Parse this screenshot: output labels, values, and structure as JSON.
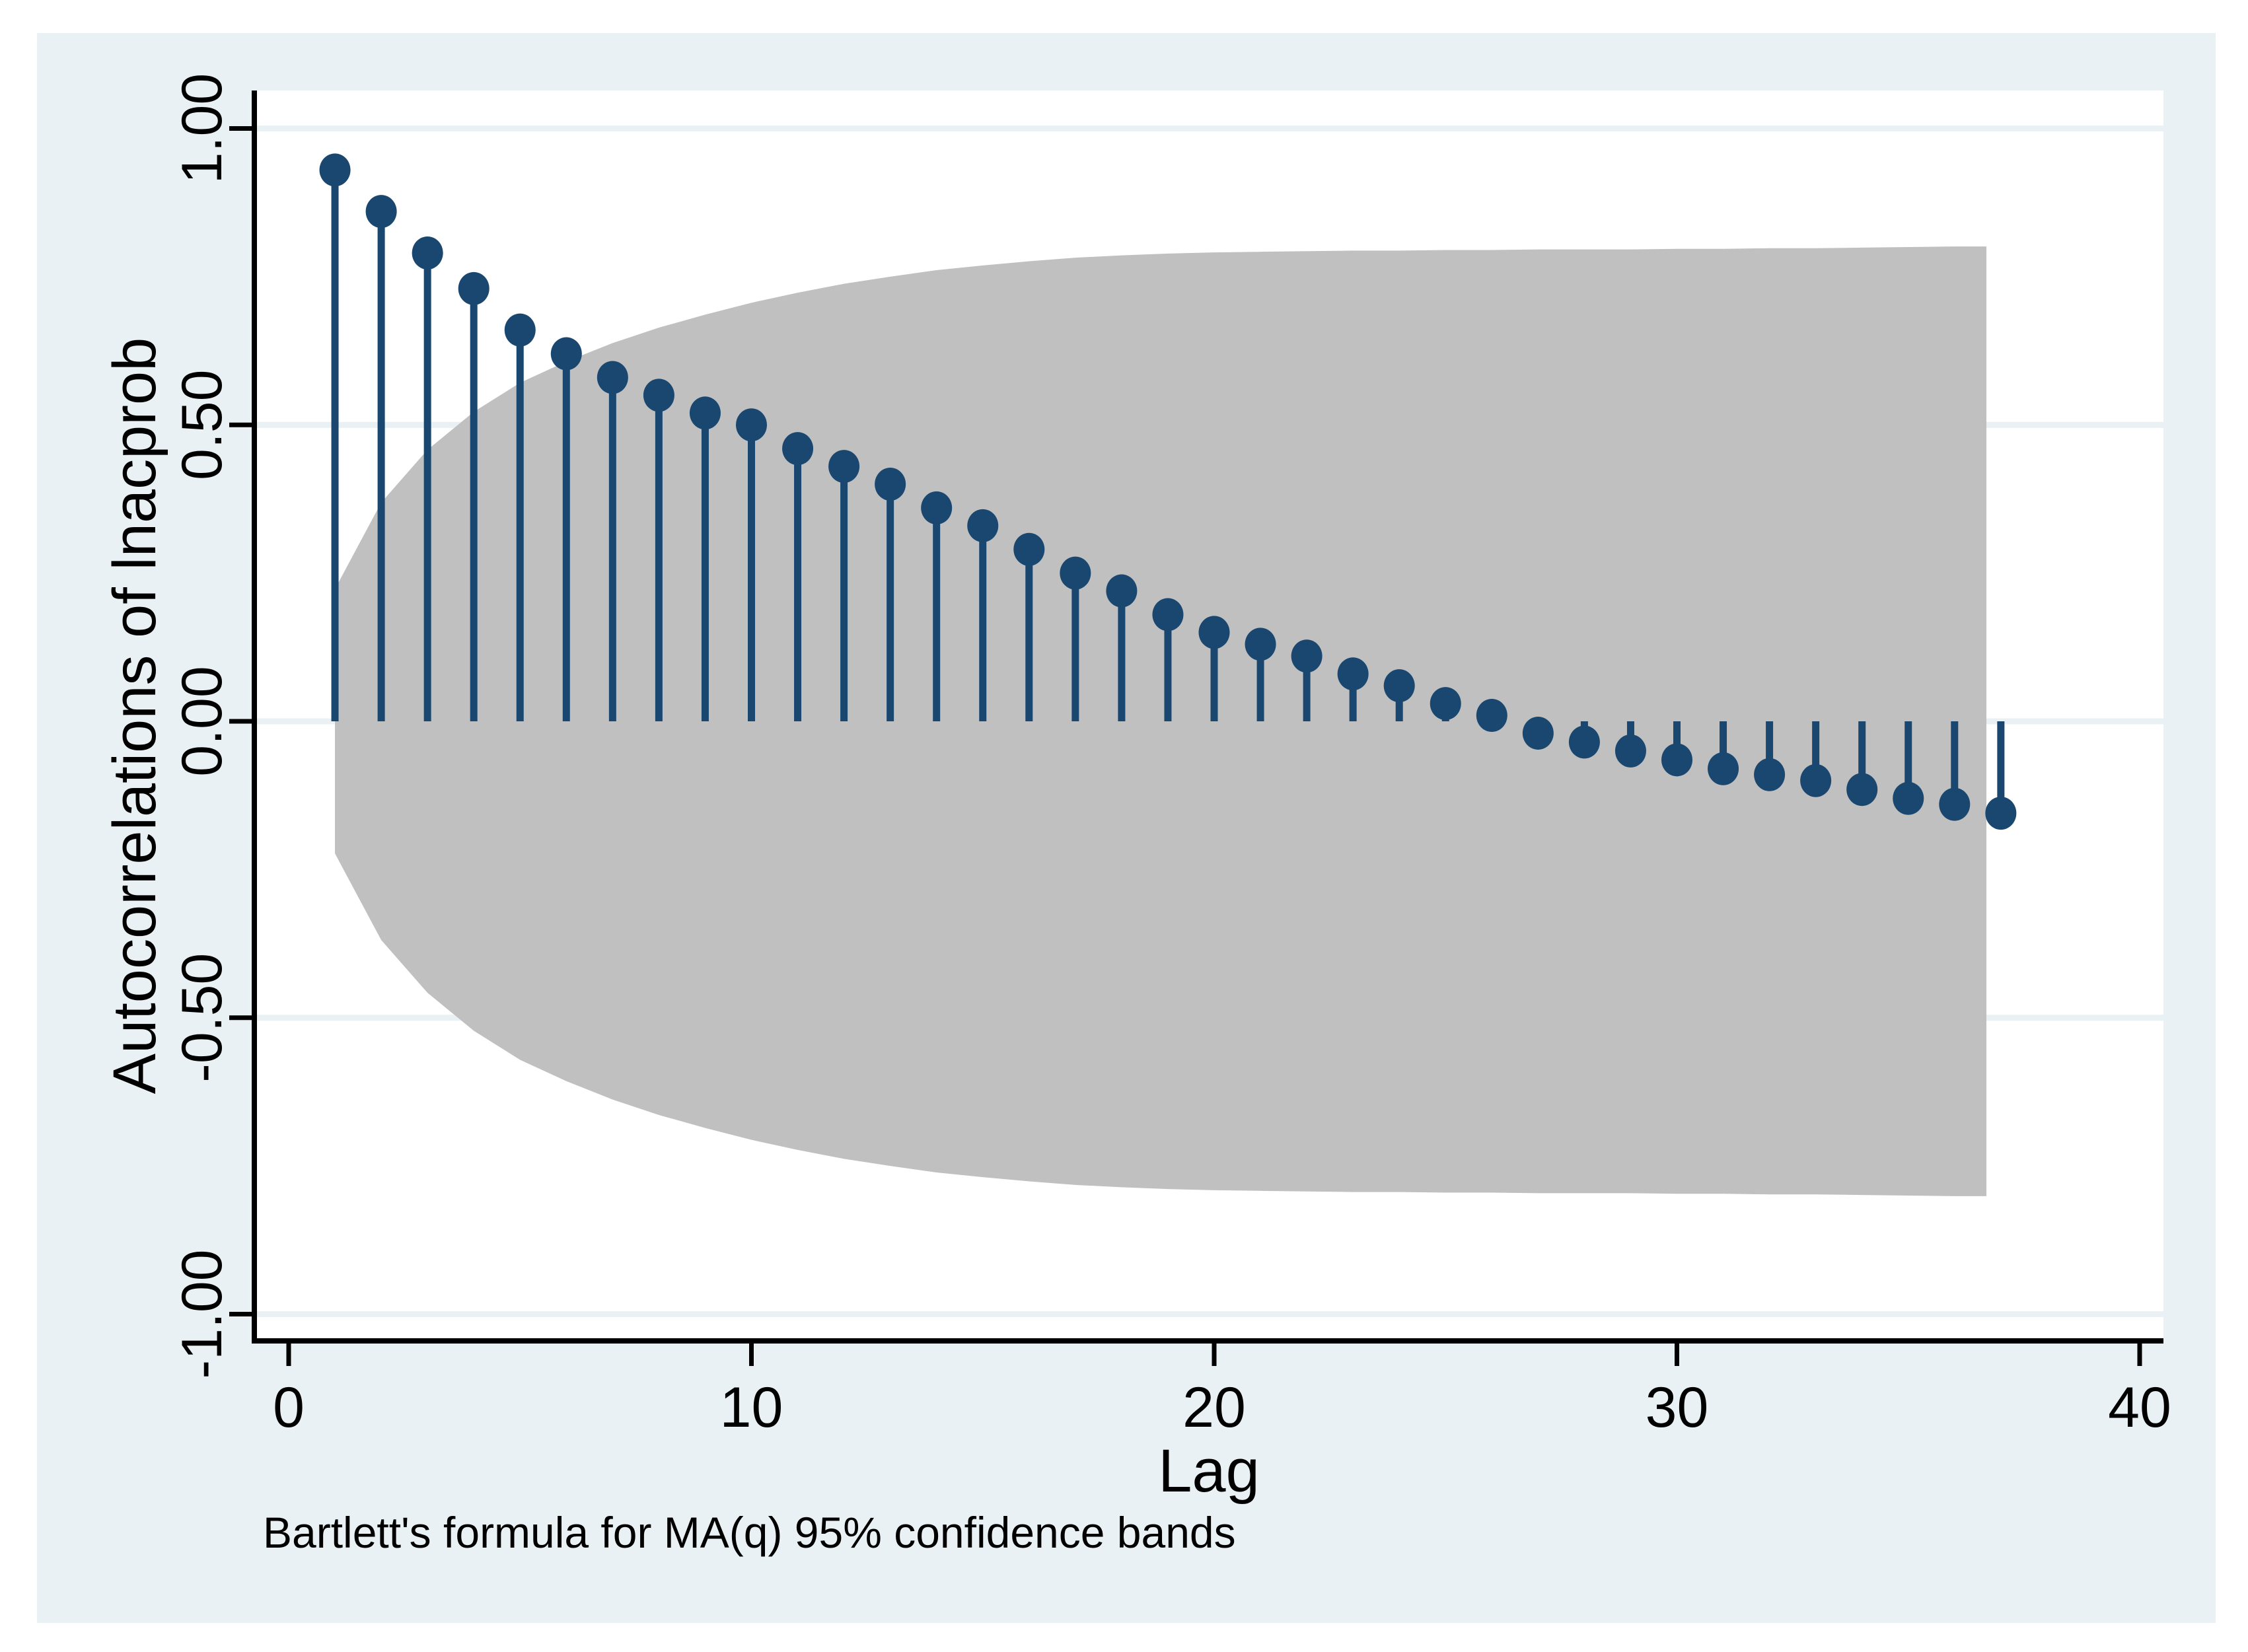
{
  "chart_data": {
    "type": "stem",
    "subtype": "autocorrelation-correlogram",
    "ylabel": "Autocorrelations of lnacprob",
    "xlabel": "Lag",
    "note": "Bartlett's formula for MA(q) 95% confidence bands",
    "x_tick_labels": [
      "0",
      "10",
      "20",
      "30",
      "40"
    ],
    "x_tick_values": [
      0,
      10,
      20,
      30,
      40
    ],
    "y_tick_labels": [
      "1.00",
      "0.50",
      "0.00",
      "-0.50",
      "-1.00"
    ],
    "y_tick_values": [
      1.0,
      0.5,
      0.0,
      -0.5,
      -1.0
    ],
    "xlim": [
      0,
      40
    ],
    "ylim": [
      -1.0,
      1.0
    ],
    "grid": true,
    "lags": [
      1,
      2,
      3,
      4,
      5,
      6,
      7,
      8,
      9,
      10,
      11,
      12,
      13,
      14,
      15,
      16,
      17,
      18,
      19,
      20,
      21,
      22,
      23,
      24,
      25,
      26,
      27,
      28,
      29,
      30,
      31,
      32,
      33,
      34,
      35,
      36,
      37
    ],
    "acf_values": [
      0.93,
      0.86,
      0.79,
      0.73,
      0.66,
      0.62,
      0.58,
      0.55,
      0.52,
      0.5,
      0.46,
      0.43,
      0.4,
      0.36,
      0.33,
      0.29,
      0.25,
      0.22,
      0.18,
      0.15,
      0.13,
      0.11,
      0.08,
      0.06,
      0.03,
      0.01,
      -0.02,
      -0.035,
      -0.05,
      -0.065,
      -0.08,
      -0.09,
      -0.1,
      -0.115,
      -0.13,
      -0.14,
      -0.155
    ],
    "confidence_band_upper": [
      0.223,
      0.369,
      0.458,
      0.522,
      0.571,
      0.607,
      0.638,
      0.664,
      0.686,
      0.706,
      0.723,
      0.738,
      0.75,
      0.761,
      0.769,
      0.776,
      0.782,
      0.786,
      0.789,
      0.791,
      0.792,
      0.793,
      0.794,
      0.794,
      0.795,
      0.795,
      0.796,
      0.796,
      0.796,
      0.797,
      0.797,
      0.798,
      0.798,
      0.799,
      0.8,
      0.801,
      0.801
    ],
    "confidence_band_symmetric": true,
    "confidence_level": "95%"
  },
  "colors": {
    "page_background": "#ffffff",
    "graph_background": "#e9f1f4",
    "plot_background": "#ffffff",
    "gridline": "#e9f1f4",
    "confidence_band": "#c0c0c0",
    "stem_and_marker": "#1a476f",
    "axis_and_text": "#000000"
  }
}
